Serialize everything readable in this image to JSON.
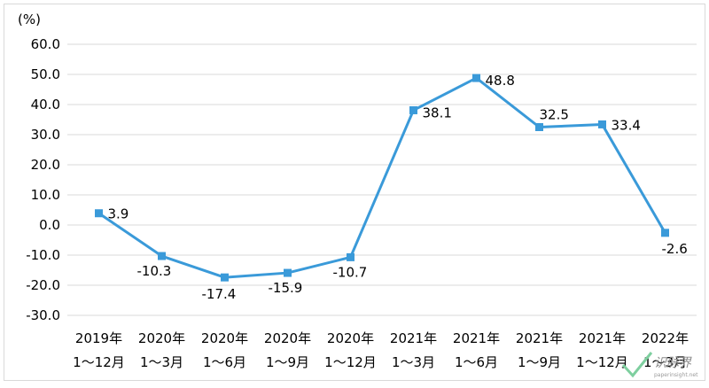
{
  "chart_data": {
    "type": "line",
    "unit_label": "(%)",
    "categories": [
      [
        "2019年",
        "1～12月"
      ],
      [
        "2020年",
        "1～3月"
      ],
      [
        "2020年",
        "1～6月"
      ],
      [
        "2020年",
        "1～9月"
      ],
      [
        "2020年",
        "1～12月"
      ],
      [
        "2021年",
        "1～3月"
      ],
      [
        "2021年",
        "1～6月"
      ],
      [
        "2021年",
        "1～9月"
      ],
      [
        "2021年",
        "1～12月"
      ],
      [
        "2022年",
        "1～3月"
      ]
    ],
    "series": [
      {
        "values": [
          3.9,
          -10.3,
          -17.4,
          -15.9,
          -10.7,
          38.1,
          48.8,
          32.5,
          33.4,
          -2.6
        ]
      }
    ],
    "data_labels": [
      "3.9",
      "-10.3",
      "-17.4",
      "-15.9",
      "-10.7",
      "38.1",
      "48.8",
      "32.5",
      "33.4",
      "-2.6"
    ],
    "yticks": [
      "60.0",
      "50.0",
      "40.0",
      "30.0",
      "20.0",
      "10.0",
      "0.0",
      "-10.0",
      "-20.0",
      "-30.0"
    ],
    "ylim": [
      -30,
      60
    ],
    "grid": true,
    "line_color": "#3A9AD9",
    "grid_color": "#D9D9D9"
  },
  "watermark": {
    "brand": "识脉界",
    "url": "paperinsight.net"
  }
}
